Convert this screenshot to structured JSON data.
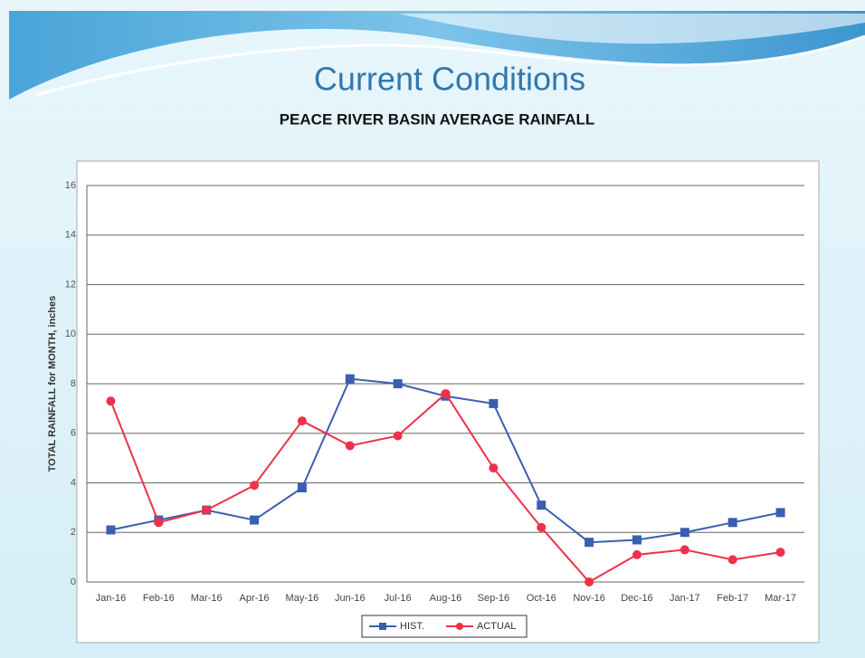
{
  "chart_data": {
    "type": "line",
    "title": "Current Conditions",
    "subtitle": "PEACE RIVER BASIN AVERAGE RAINFALL",
    "y_label": "TOTAL RAINFALL for MONTH, inches",
    "categories": [
      "Jan-16",
      "Feb-16",
      "Mar-16",
      "Apr-16",
      "May-16",
      "Jun-16",
      "Jul-16",
      "Aug-16",
      "Sep-16",
      "Oct-16",
      "Nov-16",
      "Dec-16",
      "Jan-17",
      "Feb-17",
      "Mar-17"
    ],
    "series": [
      {
        "name": "HIST.",
        "color": "#3a5fb0",
        "marker": "square",
        "values": [
          2.1,
          2.5,
          2.9,
          2.5,
          3.8,
          8.2,
          8.0,
          7.5,
          7.2,
          3.1,
          1.6,
          1.7,
          2.0,
          2.4,
          2.8
        ]
      },
      {
        "name": "ACTUAL",
        "color": "#f0304a",
        "marker": "circle",
        "values": [
          7.3,
          2.4,
          2.9,
          3.9,
          6.5,
          5.5,
          5.9,
          7.6,
          4.6,
          2.2,
          0.0,
          1.1,
          1.3,
          0.9,
          1.2
        ]
      }
    ],
    "ylim": [
      0,
      16
    ],
    "yticks": [
      0,
      2,
      4,
      6,
      8,
      10,
      12,
      14,
      16
    ],
    "grid": true,
    "legend": "bottom"
  }
}
